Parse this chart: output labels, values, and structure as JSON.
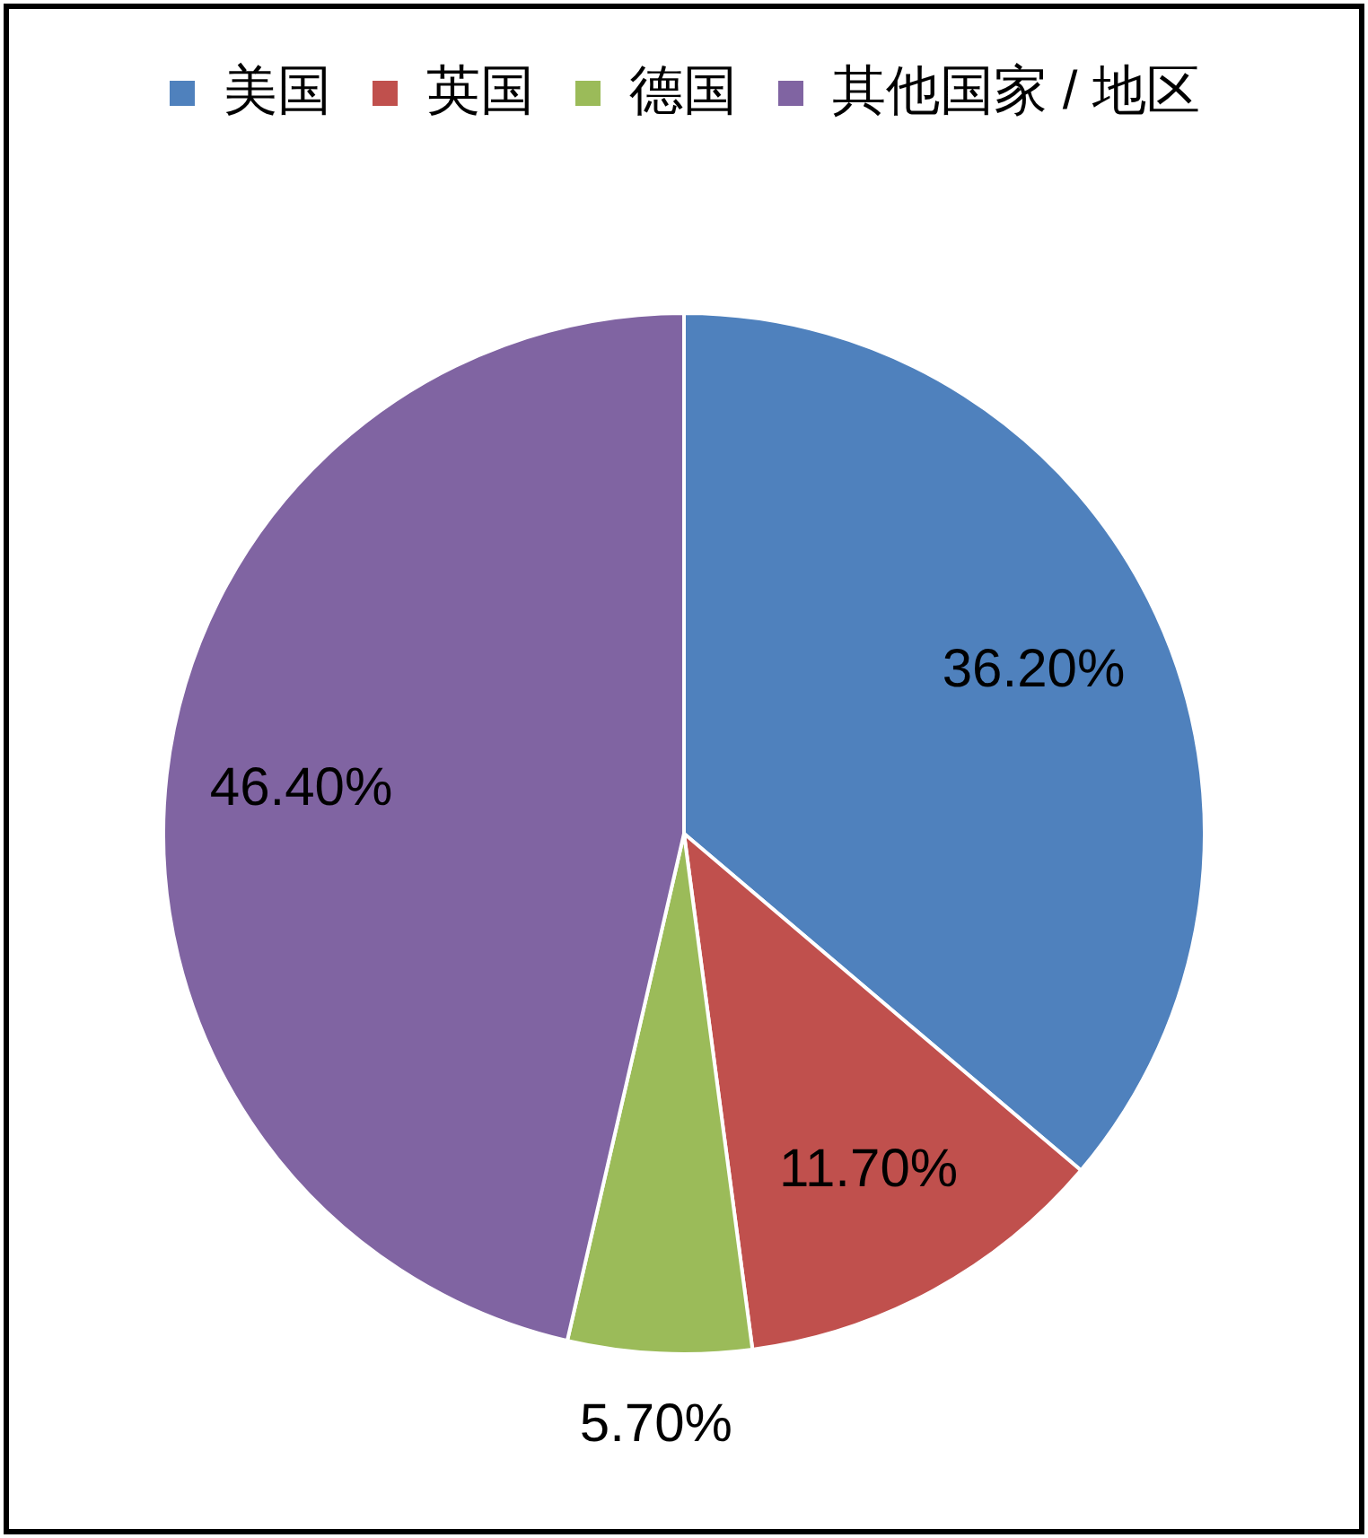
{
  "chart_data": {
    "type": "pie",
    "categories": [
      "美国",
      "英国",
      "德国",
      "其他国家 / 地区"
    ],
    "values": [
      36.2,
      11.7,
      5.7,
      46.4
    ],
    "colors": [
      "#4f81bd",
      "#c0504d",
      "#9bbb59",
      "#8064a2"
    ],
    "value_labels": [
      "36.20%",
      "11.70%",
      "5.70%",
      "46.40%"
    ],
    "legend": "top"
  }
}
